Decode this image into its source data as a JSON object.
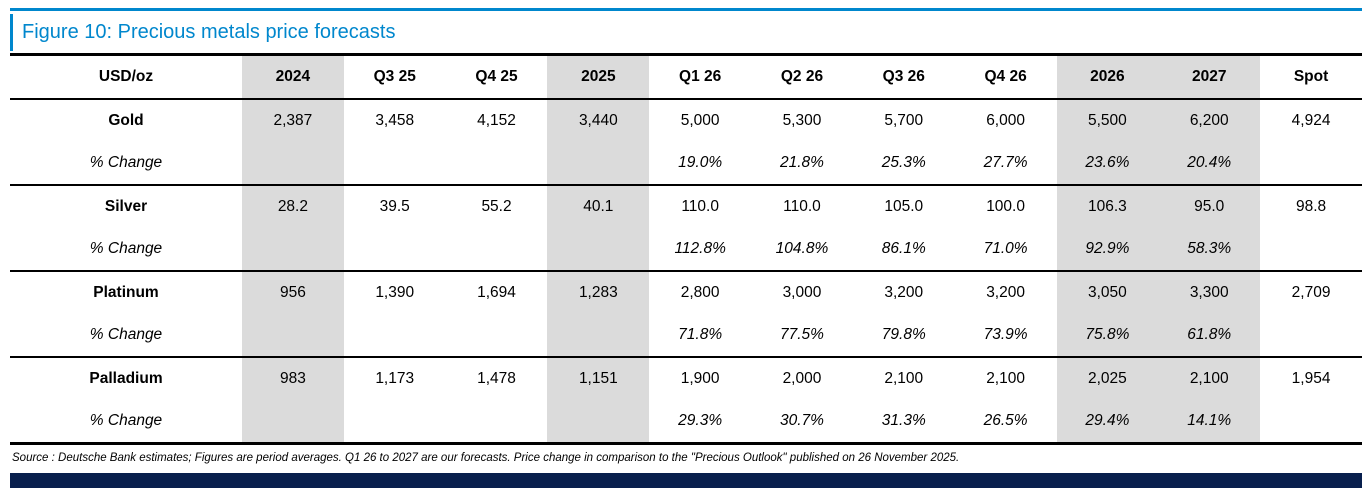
{
  "figure": {
    "title": "Figure 10: Precious metals price forecasts"
  },
  "table": {
    "corner_label": "USD/oz",
    "pct_label": "% Change",
    "columns": [
      {
        "label": "2024",
        "shaded": true
      },
      {
        "label": "Q3 25",
        "shaded": false
      },
      {
        "label": "Q4 25",
        "shaded": false
      },
      {
        "label": "2025",
        "shaded": true
      },
      {
        "label": "Q1 26",
        "shaded": false
      },
      {
        "label": "Q2 26",
        "shaded": false
      },
      {
        "label": "Q3 26",
        "shaded": false
      },
      {
        "label": "Q4 26",
        "shaded": false
      },
      {
        "label": "2026",
        "shaded": true
      },
      {
        "label": "2027",
        "shaded": true
      },
      {
        "label": "Spot",
        "shaded": false
      }
    ],
    "rows": [
      {
        "metal": "Gold",
        "values": [
          "2,387",
          "3,458",
          "4,152",
          "3,440",
          "5,000",
          "5,300",
          "5,700",
          "6,000",
          "5,500",
          "6,200",
          "4,924"
        ],
        "pct": [
          "",
          "",
          "",
          "",
          "19.0%",
          "21.8%",
          "25.3%",
          "27.7%",
          "23.6%",
          "20.4%",
          ""
        ]
      },
      {
        "metal": "Silver",
        "values": [
          "28.2",
          "39.5",
          "55.2",
          "40.1",
          "110.0",
          "110.0",
          "105.0",
          "100.0",
          "106.3",
          "95.0",
          "98.8"
        ],
        "pct": [
          "",
          "",
          "",
          "",
          "112.8%",
          "104.8%",
          "86.1%",
          "71.0%",
          "92.9%",
          "58.3%",
          ""
        ]
      },
      {
        "metal": "Platinum",
        "values": [
          "956",
          "1,390",
          "1,694",
          "1,283",
          "2,800",
          "3,000",
          "3,200",
          "3,200",
          "3,050",
          "3,300",
          "2,709"
        ],
        "pct": [
          "",
          "",
          "",
          "",
          "71.8%",
          "77.5%",
          "79.8%",
          "73.9%",
          "75.8%",
          "61.8%",
          ""
        ]
      },
      {
        "metal": "Palladium",
        "values": [
          "983",
          "1,173",
          "1,478",
          "1,151",
          "1,900",
          "2,000",
          "2,100",
          "2,100",
          "2,025",
          "2,100",
          "1,954"
        ],
        "pct": [
          "",
          "",
          "",
          "",
          "29.3%",
          "30.7%",
          "31.3%",
          "26.5%",
          "29.4%",
          "14.1%",
          ""
        ]
      }
    ]
  },
  "footer": {
    "source": "Source : Deutsche Bank estimates; Figures are period averages. Q1 26 to 2027 are our forecasts. Price change in comparison to the \"Precious Outlook\" published on 26 November 2025."
  },
  "colors": {
    "accent": "#0087CD",
    "bar": "#081F4D",
    "shade": "#DBDBDB"
  }
}
